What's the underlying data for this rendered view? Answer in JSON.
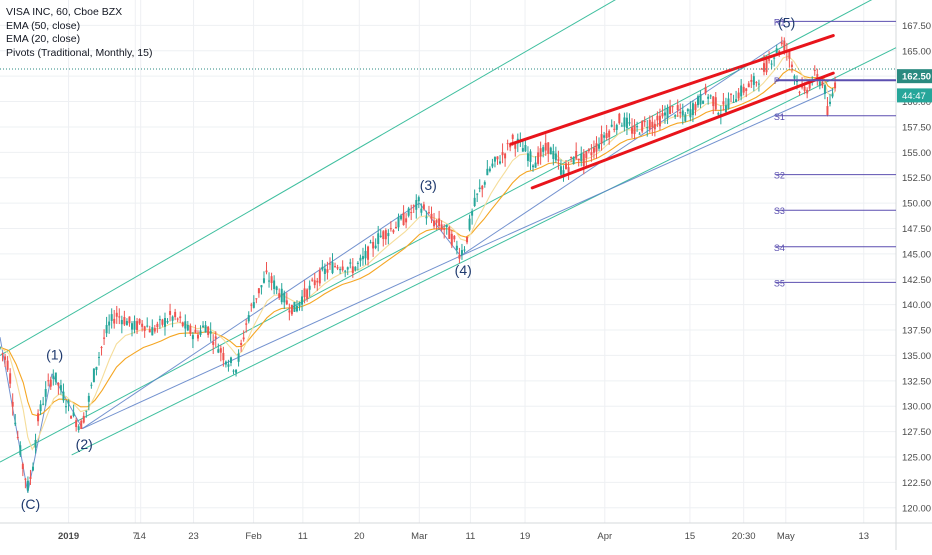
{
  "header": {
    "symbol": "VISA INC, 60, Cboe BZX",
    "indicators": [
      "EMA (50, close)",
      "EMA (20, close)",
      "Pivots (Traditional, Monthly, 15)"
    ]
  },
  "colors": {
    "up": "#26a69a",
    "down": "#ef5350",
    "ema50": "#f5a623",
    "ema20": "#f5dd9a",
    "channel": "#3fbf9f",
    "blue_line": "#5b7fc7",
    "wedge": "#e8141b",
    "pivot": "#5b4fb0",
    "wave_label": "#1f3a6e",
    "axis_text": "#4a4a4a",
    "price_badge": "#2a8a80",
    "timer_badge": "#26a69a"
  },
  "chart_data": {
    "type": "candlestick",
    "title": "VISA INC, 60, Cboe BZX",
    "ylim": [
      118.5,
      170
    ],
    "y_ticks": [
      120.0,
      122.5,
      125.0,
      127.5,
      130.0,
      132.5,
      135.0,
      137.5,
      140.0,
      142.5,
      145.0,
      147.5,
      150.0,
      152.5,
      155.0,
      157.5,
      160.0,
      162.5,
      165.0,
      167.5
    ],
    "x_tick_labels": [
      "2019",
      "7",
      "14",
      "23",
      "Feb",
      "11",
      "20",
      "Mar",
      "11",
      "19",
      "Apr",
      "15",
      "20:30",
      "May",
      "13"
    ],
    "x_tick_frac": [
      0.0765,
      0.151,
      0.157,
      0.216,
      0.283,
      0.338,
      0.401,
      0.468,
      0.525,
      0.586,
      0.675,
      0.77,
      0.83,
      0.877,
      0.964
    ],
    "x_range_frac": [
      0.0,
      0.95
    ],
    "price_path": [
      {
        "x": 0.0,
        "y": 135.8
      },
      {
        "x": 0.01,
        "y": 134.0
      },
      {
        "x": 0.018,
        "y": 128.0
      },
      {
        "x": 0.026,
        "y": 124.0
      },
      {
        "x": 0.031,
        "y": 122.0
      },
      {
        "x": 0.036,
        "y": 123.5
      },
      {
        "x": 0.042,
        "y": 128.5
      },
      {
        "x": 0.048,
        "y": 130.5
      },
      {
        "x": 0.054,
        "y": 132.0
      },
      {
        "x": 0.06,
        "y": 133.2
      },
      {
        "x": 0.066,
        "y": 132.0
      },
      {
        "x": 0.074,
        "y": 130.5
      },
      {
        "x": 0.082,
        "y": 129.0
      },
      {
        "x": 0.09,
        "y": 128.0
      },
      {
        "x": 0.098,
        "y": 130.0
      },
      {
        "x": 0.106,
        "y": 133.5
      },
      {
        "x": 0.114,
        "y": 136.0
      },
      {
        "x": 0.122,
        "y": 138.0
      },
      {
        "x": 0.13,
        "y": 139.0
      },
      {
        "x": 0.14,
        "y": 138.5
      },
      {
        "x": 0.15,
        "y": 137.8
      },
      {
        "x": 0.16,
        "y": 138.2
      },
      {
        "x": 0.17,
        "y": 137.5
      },
      {
        "x": 0.18,
        "y": 138.0
      },
      {
        "x": 0.19,
        "y": 138.8
      },
      {
        "x": 0.2,
        "y": 138.5
      },
      {
        "x": 0.21,
        "y": 137.5
      },
      {
        "x": 0.22,
        "y": 137.0
      },
      {
        "x": 0.23,
        "y": 138.0
      },
      {
        "x": 0.24,
        "y": 136.5
      },
      {
        "x": 0.25,
        "y": 135.0
      },
      {
        "x": 0.258,
        "y": 134.2
      },
      {
        "x": 0.264,
        "y": 133.8
      },
      {
        "x": 0.27,
        "y": 136.0
      },
      {
        "x": 0.276,
        "y": 138.5
      },
      {
        "x": 0.282,
        "y": 140.0
      },
      {
        "x": 0.29,
        "y": 141.5
      },
      {
        "x": 0.298,
        "y": 142.8
      },
      {
        "x": 0.306,
        "y": 142.0
      },
      {
        "x": 0.314,
        "y": 141.0
      },
      {
        "x": 0.322,
        "y": 140.0
      },
      {
        "x": 0.33,
        "y": 139.5
      },
      {
        "x": 0.338,
        "y": 140.8
      },
      {
        "x": 0.346,
        "y": 141.5
      },
      {
        "x": 0.354,
        "y": 142.5
      },
      {
        "x": 0.362,
        "y": 143.2
      },
      {
        "x": 0.372,
        "y": 143.8
      },
      {
        "x": 0.382,
        "y": 144.0
      },
      {
        "x": 0.392,
        "y": 143.5
      },
      {
        "x": 0.402,
        "y": 144.0
      },
      {
        "x": 0.412,
        "y": 145.2
      },
      {
        "x": 0.422,
        "y": 146.5
      },
      {
        "x": 0.432,
        "y": 147.2
      },
      {
        "x": 0.442,
        "y": 147.8
      },
      {
        "x": 0.452,
        "y": 148.5
      },
      {
        "x": 0.46,
        "y": 149.2
      },
      {
        "x": 0.468,
        "y": 150.0
      },
      {
        "x": 0.476,
        "y": 149.0
      },
      {
        "x": 0.484,
        "y": 148.2
      },
      {
        "x": 0.492,
        "y": 147.8
      },
      {
        "x": 0.5,
        "y": 147.2
      },
      {
        "x": 0.508,
        "y": 146.0
      },
      {
        "x": 0.514,
        "y": 145.0
      },
      {
        "x": 0.52,
        "y": 146.0
      },
      {
        "x": 0.526,
        "y": 148.5
      },
      {
        "x": 0.532,
        "y": 150.5
      },
      {
        "x": 0.54,
        "y": 152.0
      },
      {
        "x": 0.548,
        "y": 153.5
      },
      {
        "x": 0.556,
        "y": 154.2
      },
      {
        "x": 0.564,
        "y": 155.0
      },
      {
        "x": 0.572,
        "y": 156.2
      },
      {
        "x": 0.58,
        "y": 155.8
      },
      {
        "x": 0.588,
        "y": 155.0
      },
      {
        "x": 0.596,
        "y": 154.0
      },
      {
        "x": 0.604,
        "y": 154.8
      },
      {
        "x": 0.612,
        "y": 155.5
      },
      {
        "x": 0.62,
        "y": 154.5
      },
      {
        "x": 0.628,
        "y": 153.0
      },
      {
        "x": 0.636,
        "y": 153.8
      },
      {
        "x": 0.644,
        "y": 154.8
      },
      {
        "x": 0.652,
        "y": 154.2
      },
      {
        "x": 0.66,
        "y": 155.0
      },
      {
        "x": 0.668,
        "y": 155.8
      },
      {
        "x": 0.676,
        "y": 156.8
      },
      {
        "x": 0.684,
        "y": 157.5
      },
      {
        "x": 0.692,
        "y": 158.2
      },
      {
        "x": 0.7,
        "y": 157.8
      },
      {
        "x": 0.708,
        "y": 157.0
      },
      {
        "x": 0.716,
        "y": 157.5
      },
      {
        "x": 0.724,
        "y": 158.0
      },
      {
        "x": 0.732,
        "y": 157.8
      },
      {
        "x": 0.74,
        "y": 158.5
      },
      {
        "x": 0.748,
        "y": 159.2
      },
      {
        "x": 0.756,
        "y": 159.0
      },
      {
        "x": 0.764,
        "y": 158.4
      },
      {
        "x": 0.772,
        "y": 159.2
      },
      {
        "x": 0.78,
        "y": 160.0
      },
      {
        "x": 0.788,
        "y": 160.8
      },
      {
        "x": 0.796,
        "y": 160.2
      },
      {
        "x": 0.804,
        "y": 159.0
      },
      {
        "x": 0.812,
        "y": 159.8
      },
      {
        "x": 0.82,
        "y": 160.5
      },
      {
        "x": 0.828,
        "y": 161.0
      },
      {
        "x": 0.836,
        "y": 161.5
      },
      {
        "x": 0.844,
        "y": 162.0
      },
      {
        "x": 0.852,
        "y": 163.0
      },
      {
        "x": 0.86,
        "y": 164.2
      },
      {
        "x": 0.868,
        "y": 165.0
      },
      {
        "x": 0.874,
        "y": 165.8
      },
      {
        "x": 0.88,
        "y": 164.8
      },
      {
        "x": 0.886,
        "y": 163.0
      },
      {
        "x": 0.892,
        "y": 161.5
      },
      {
        "x": 0.898,
        "y": 160.8
      },
      {
        "x": 0.904,
        "y": 161.8
      },
      {
        "x": 0.91,
        "y": 162.5
      },
      {
        "x": 0.916,
        "y": 162.0
      },
      {
        "x": 0.92,
        "y": 161.8
      },
      {
        "x": 0.924,
        "y": 158.5
      },
      {
        "x": 0.928,
        "y": 160.2
      },
      {
        "x": 0.932,
        "y": 161.8
      }
    ],
    "channel_lines": [
      {
        "x1": 0.0,
        "y1": 124.5,
        "x2": 1.0,
        "y2": 171.3
      },
      {
        "x1": 0.08,
        "y1": 125.2,
        "x2": 1.0,
        "y2": 165.3
      },
      {
        "x1": 0.0,
        "y1": 135.0,
        "x2": 1.0,
        "y2": 186.0
      }
    ],
    "blue_lines": [
      {
        "x1": 0.0,
        "y1": 136.8,
        "x2": 0.031,
        "y2": 121.5
      },
      {
        "x1": 0.031,
        "y1": 121.5,
        "x2": 0.058,
        "y2": 133.2
      },
      {
        "x1": 0.058,
        "y1": 133.2,
        "x2": 0.092,
        "y2": 127.8
      },
      {
        "x1": 0.092,
        "y1": 127.8,
        "x2": 0.468,
        "y2": 150.0
      },
      {
        "x1": 0.468,
        "y1": 150.0,
        "x2": 0.514,
        "y2": 144.8
      },
      {
        "x1": 0.514,
        "y1": 144.8,
        "x2": 0.874,
        "y2": 166.0
      },
      {
        "x1": 0.092,
        "y1": 127.8,
        "x2": 0.514,
        "y2": 144.8
      },
      {
        "x1": 0.514,
        "y1": 144.8,
        "x2": 0.93,
        "y2": 161.2
      }
    ],
    "wedge_lines": [
      {
        "x1": 0.57,
        "y1": 155.8,
        "x2": 0.93,
        "y2": 166.5
      },
      {
        "x1": 0.594,
        "y1": 151.5,
        "x2": 0.93,
        "y2": 162.8
      }
    ],
    "pivots": [
      {
        "label": "R1",
        "value": 167.9,
        "x1": 0.866
      },
      {
        "label": "P",
        "value": 162.1,
        "x1": 0.866
      },
      {
        "label": "S1",
        "value": 158.6,
        "x1": 0.866
      },
      {
        "label": "S2",
        "value": 152.8,
        "x1": 0.866
      },
      {
        "label": "S3",
        "value": 149.3,
        "x1": 0.866
      },
      {
        "label": "S4",
        "value": 145.7,
        "x1": 0.866
      },
      {
        "label": "S5",
        "value": 142.2,
        "x1": 0.866
      }
    ],
    "wave_labels": [
      {
        "label": "(C)",
        "x": 0.034,
        "y": 119.9
      },
      {
        "label": "(1)",
        "x": 0.061,
        "y": 134.6
      },
      {
        "label": "(2)",
        "x": 0.094,
        "y": 125.8
      },
      {
        "label": "(3)",
        "x": 0.478,
        "y": 151.3
      },
      {
        "label": "(4)",
        "x": 0.517,
        "y": 142.9
      },
      {
        "label": "(5)",
        "x": 0.878,
        "y": 167.3
      }
    ],
    "last_price": {
      "value": 162.5,
      "label": "162.50"
    },
    "timer": {
      "value": 161.0,
      "label": "44:47"
    },
    "last_line": 163.2
  }
}
